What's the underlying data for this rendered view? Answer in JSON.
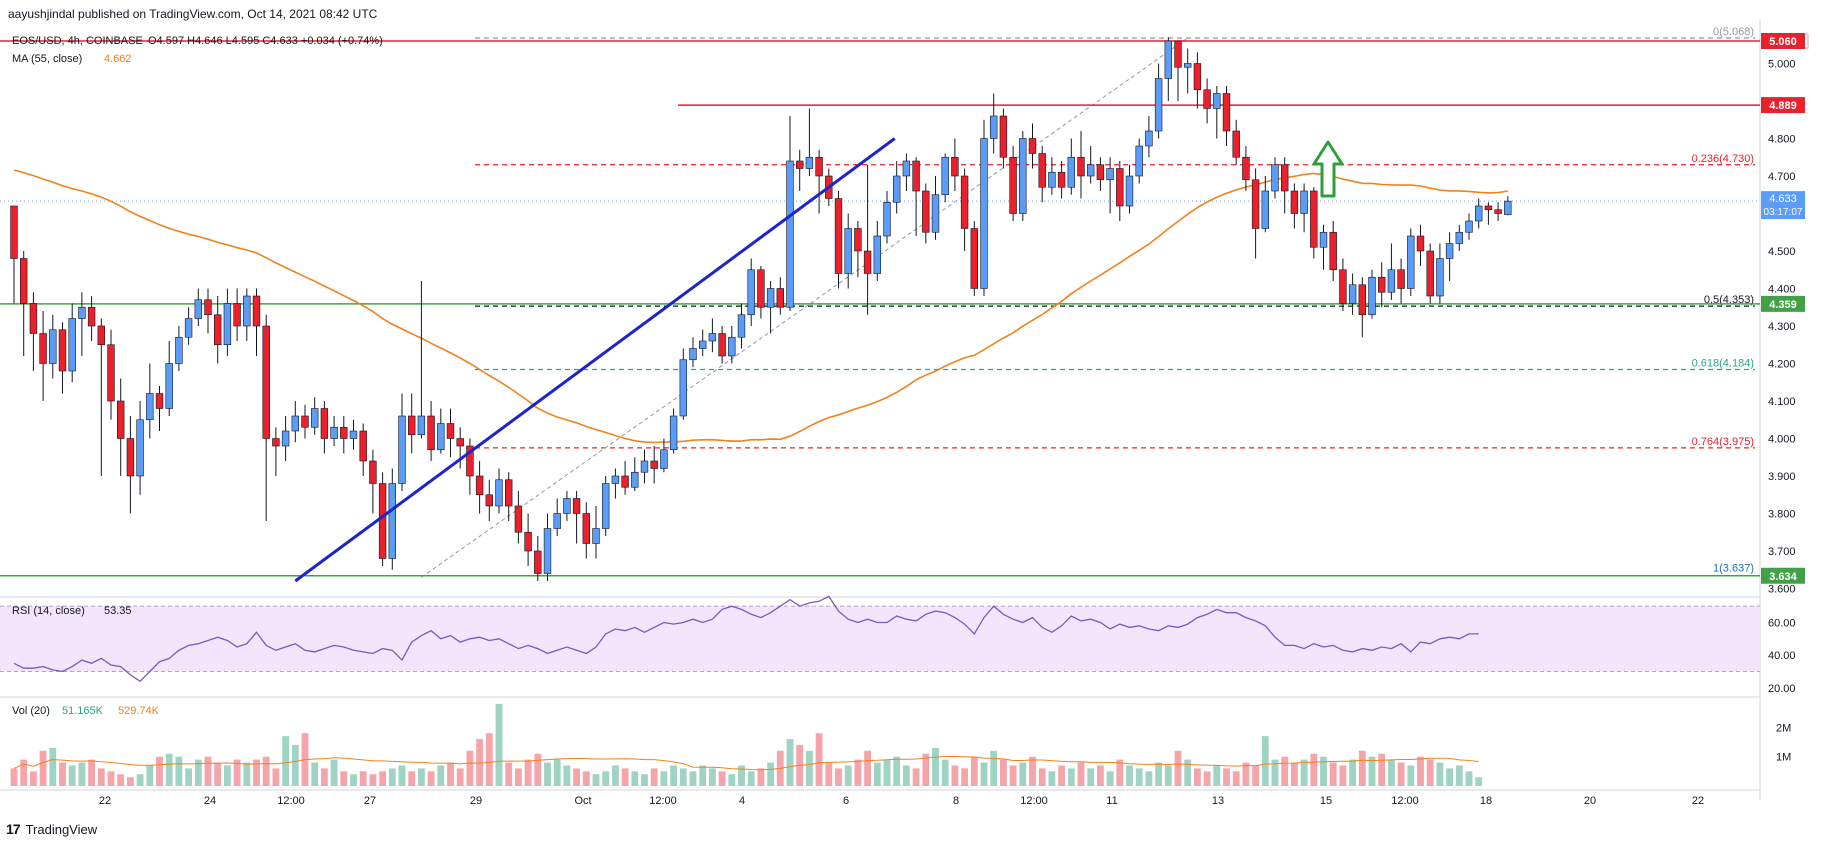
{
  "publisher": "aayushjindal published on TradingView.com, Oct 14, 2021 08:42 UTC",
  "footer": {
    "brand": "TradingView"
  },
  "colors": {
    "up": "#5b9cf6",
    "down": "#e8212c",
    "ma": "#f0821d",
    "trend": "#1d24c9",
    "support": "#43a047",
    "resistance": "#e8212c",
    "rsi": "#7e57c2",
    "vol_up": "#9fd3c3",
    "vol_down": "#f5a4aa",
    "arrow": "#2e9e3a"
  },
  "legend": {
    "symbol": "EOS/USD, 4h, COINBASE",
    "ohlc": "O4.597  H4.646  L4.595  C4.633  +0.034 (+0.74%)",
    "ma_label": "MA (55, close)",
    "ma_value": "4.662",
    "rsi_label": "RSI (14, close)",
    "rsi_value": "53.35",
    "vol_label": "Vol (20)",
    "vol_value1": "51.165K",
    "vol_value2": "529.74K"
  },
  "chart_data": {
    "type": "candlestick",
    "currency_label": "USD",
    "price_axis_ticks": [
      "5",
      "5.000",
      "4.900",
      "4.800",
      "4.700",
      "4.600",
      "4.500",
      "4.400",
      "4.300",
      "4.200",
      "4.100",
      "4.000",
      "3.900",
      "3.800",
      "3.700",
      "3.600"
    ],
    "ylim": [
      3.58,
      5.1
    ],
    "x_ticks": [
      "22",
      "24",
      "12:00",
      "27",
      "29",
      "Oct",
      "12:00",
      "4",
      "6",
      "8",
      "12:00",
      "11",
      "13",
      "15",
      "12:00",
      "18",
      "20",
      "22"
    ],
    "last_price": {
      "value": "4.633",
      "countdown": "03:17:07"
    },
    "horizontal_lines": [
      {
        "value": 5.06,
        "label": "5.060",
        "color": "resistance"
      },
      {
        "value": 4.889,
        "label": "4.889",
        "color": "resistance"
      },
      {
        "value": 4.359,
        "label": "4.359",
        "color": "support"
      },
      {
        "value": 3.634,
        "label": "3.634",
        "color": "support"
      }
    ],
    "fibonacci": [
      {
        "level": "0",
        "price": 5.068,
        "label": "0(5.068)"
      },
      {
        "level": "0.236",
        "price": 4.73,
        "label": "0.236(4.730)"
      },
      {
        "level": "0.5",
        "price": 4.353,
        "label": "0.5(4.353)"
      },
      {
        "level": "0.618",
        "price": 4.184,
        "label": "0.618(4.184)"
      },
      {
        "level": "0.764",
        "price": 3.975,
        "label": "0.764(3.975)"
      },
      {
        "level": "1",
        "price": 3.637,
        "label": "1(3.637)"
      }
    ],
    "trendline": {
      "from": [
        29,
        3.62
      ],
      "to": [
        90.8,
        4.8
      ]
    },
    "candles": [
      [
        4.62,
        4.48,
        4.62,
        4.36
      ],
      [
        4.48,
        4.36,
        4.5,
        4.22
      ],
      [
        4.36,
        4.28,
        4.39,
        4.18
      ],
      [
        4.28,
        4.2,
        4.34,
        4.1
      ],
      [
        4.2,
        4.29,
        4.33,
        4.16
      ],
      [
        4.29,
        4.18,
        4.31,
        4.12
      ],
      [
        4.18,
        4.32,
        4.36,
        4.15
      ],
      [
        4.32,
        4.35,
        4.39,
        4.22
      ],
      [
        4.35,
        4.3,
        4.38,
        4.26
      ],
      [
        4.3,
        4.25,
        4.32,
        3.9
      ],
      [
        4.25,
        4.1,
        4.29,
        4.05
      ],
      [
        4.1,
        4.0,
        4.16,
        3.9
      ],
      [
        4.0,
        3.9,
        4.06,
        3.8
      ],
      [
        3.9,
        4.05,
        4.1,
        3.85
      ],
      [
        4.05,
        4.12,
        4.2,
        4.0
      ],
      [
        4.12,
        4.08,
        4.14,
        4.02
      ],
      [
        4.08,
        4.2,
        4.26,
        4.06
      ],
      [
        4.2,
        4.27,
        4.3,
        4.18
      ],
      [
        4.27,
        4.32,
        4.35,
        4.25
      ],
      [
        4.32,
        4.37,
        4.4,
        4.3
      ],
      [
        4.37,
        4.33,
        4.4,
        4.28
      ],
      [
        4.33,
        4.25,
        4.38,
        4.2
      ],
      [
        4.25,
        4.36,
        4.4,
        4.22
      ],
      [
        4.36,
        4.3,
        4.4,
        4.26
      ],
      [
        4.3,
        4.38,
        4.4,
        4.26
      ],
      [
        4.38,
        4.3,
        4.4,
        4.22
      ],
      [
        4.3,
        4.0,
        4.33,
        3.78
      ],
      [
        4.0,
        3.98,
        4.03,
        3.9
      ],
      [
        3.98,
        4.02,
        4.06,
        3.94
      ],
      [
        4.02,
        4.06,
        4.1,
        3.99
      ],
      [
        4.06,
        4.03,
        4.09,
        4.0
      ],
      [
        4.03,
        4.08,
        4.11,
        4.01
      ],
      [
        4.08,
        4.0,
        4.1,
        3.96
      ],
      [
        4.0,
        4.03,
        4.06,
        3.98
      ],
      [
        4.03,
        4.0,
        4.06,
        3.96
      ],
      [
        4.0,
        4.02,
        4.05,
        3.97
      ],
      [
        4.02,
        3.94,
        4.04,
        3.9
      ],
      [
        3.94,
        3.88,
        3.97,
        3.8
      ],
      [
        3.88,
        3.68,
        3.91,
        3.66
      ],
      [
        3.68,
        3.88,
        3.92,
        3.65
      ],
      [
        3.88,
        4.06,
        4.12,
        3.86
      ],
      [
        4.06,
        4.01,
        4.12,
        3.96
      ],
      [
        4.01,
        4.06,
        4.42,
        4.0
      ],
      [
        4.06,
        3.97,
        4.1,
        3.94
      ],
      [
        3.97,
        4.04,
        4.08,
        3.96
      ],
      [
        4.04,
        4.0,
        4.08,
        3.95
      ],
      [
        4.0,
        3.98,
        4.03,
        3.92
      ],
      [
        3.98,
        3.9,
        4.0,
        3.85
      ],
      [
        3.9,
        3.85,
        3.94,
        3.8
      ],
      [
        3.85,
        3.82,
        3.89,
        3.78
      ],
      [
        3.82,
        3.89,
        3.92,
        3.8
      ],
      [
        3.89,
        3.82,
        3.91,
        3.78
      ],
      [
        3.82,
        3.75,
        3.86,
        3.72
      ],
      [
        3.75,
        3.7,
        3.8,
        3.66
      ],
      [
        3.7,
        3.64,
        3.74,
        3.62
      ],
      [
        3.64,
        3.76,
        3.8,
        3.62
      ],
      [
        3.76,
        3.8,
        3.84,
        3.74
      ],
      [
        3.8,
        3.84,
        3.86,
        3.78
      ],
      [
        3.84,
        3.8,
        3.86,
        3.72
      ],
      [
        3.8,
        3.72,
        3.83,
        3.68
      ],
      [
        3.72,
        3.76,
        3.82,
        3.68
      ],
      [
        3.76,
        3.88,
        3.9,
        3.74
      ],
      [
        3.88,
        3.9,
        3.92,
        3.84
      ],
      [
        3.9,
        3.87,
        3.94,
        3.85
      ],
      [
        3.87,
        3.91,
        3.95,
        3.86
      ],
      [
        3.91,
        3.94,
        3.97,
        3.88
      ],
      [
        3.94,
        3.92,
        3.98,
        3.88
      ],
      [
        3.92,
        3.97,
        4.0,
        3.91
      ],
      [
        3.97,
        4.06,
        4.08,
        3.96
      ],
      [
        4.06,
        4.21,
        4.24,
        4.05
      ],
      [
        4.21,
        4.24,
        4.27,
        4.19
      ],
      [
        4.24,
        4.26,
        4.29,
        4.22
      ],
      [
        4.26,
        4.28,
        4.32,
        4.23
      ],
      [
        4.28,
        4.22,
        4.3,
        4.2
      ],
      [
        4.22,
        4.27,
        4.3,
        4.2
      ],
      [
        4.27,
        4.33,
        4.36,
        4.24
      ],
      [
        4.33,
        4.45,
        4.48,
        4.3
      ],
      [
        4.45,
        4.35,
        4.46,
        4.32
      ],
      [
        4.35,
        4.4,
        4.42,
        4.28
      ],
      [
        4.4,
        4.35,
        4.43,
        4.33
      ],
      [
        4.35,
        4.74,
        4.86,
        4.34
      ],
      [
        4.74,
        4.72,
        4.77,
        4.66
      ],
      [
        4.72,
        4.75,
        4.88,
        4.7
      ],
      [
        4.75,
        4.7,
        4.77,
        4.6
      ],
      [
        4.7,
        4.64,
        4.72,
        4.62
      ],
      [
        4.64,
        4.44,
        4.66,
        4.4
      ],
      [
        4.44,
        4.56,
        4.6,
        4.4
      ],
      [
        4.56,
        4.5,
        4.58,
        4.43
      ],
      [
        4.5,
        4.44,
        4.73,
        4.33
      ],
      [
        4.44,
        4.54,
        4.58,
        4.42
      ],
      [
        4.54,
        4.63,
        4.66,
        4.52
      ],
      [
        4.63,
        4.7,
        4.74,
        4.6
      ],
      [
        4.7,
        4.74,
        4.76,
        4.66
      ],
      [
        4.74,
        4.66,
        4.75,
        4.54
      ],
      [
        4.66,
        4.55,
        4.68,
        4.52
      ],
      [
        4.55,
        4.65,
        4.7,
        4.53
      ],
      [
        4.65,
        4.75,
        4.76,
        4.63
      ],
      [
        4.75,
        4.7,
        4.8,
        4.66
      ],
      [
        4.7,
        4.56,
        4.72,
        4.5
      ],
      [
        4.56,
        4.4,
        4.58,
        4.38
      ],
      [
        4.4,
        4.8,
        4.85,
        4.38
      ],
      [
        4.8,
        4.86,
        4.92,
        4.76
      ],
      [
        4.86,
        4.75,
        4.88,
        4.72
      ],
      [
        4.75,
        4.6,
        4.78,
        4.58
      ],
      [
        4.6,
        4.8,
        4.82,
        4.58
      ],
      [
        4.8,
        4.76,
        4.84,
        4.72
      ],
      [
        4.76,
        4.67,
        4.78,
        4.63
      ],
      [
        4.67,
        4.71,
        4.75,
        4.65
      ],
      [
        4.71,
        4.67,
        4.74,
        4.64
      ],
      [
        4.67,
        4.75,
        4.8,
        4.65
      ],
      [
        4.75,
        4.7,
        4.82,
        4.64
      ],
      [
        4.7,
        4.73,
        4.78,
        4.68
      ],
      [
        4.73,
        4.69,
        4.75,
        4.66
      ],
      [
        4.69,
        4.72,
        4.75,
        4.6
      ],
      [
        4.72,
        4.62,
        4.74,
        4.58
      ],
      [
        4.62,
        4.7,
        4.73,
        4.6
      ],
      [
        4.7,
        4.78,
        4.8,
        4.68
      ],
      [
        4.78,
        4.82,
        4.86,
        4.75
      ],
      [
        4.82,
        4.96,
        5.0,
        4.8
      ],
      [
        4.96,
        5.06,
        5.07,
        4.9
      ],
      [
        5.06,
        4.99,
        5.06,
        4.9
      ],
      [
        4.99,
        5.0,
        5.04,
        4.92
      ],
      [
        5.0,
        4.93,
        5.03,
        4.88
      ],
      [
        4.93,
        4.88,
        4.96,
        4.84
      ],
      [
        4.88,
        4.92,
        4.94,
        4.8
      ],
      [
        4.92,
        4.82,
        4.94,
        4.78
      ],
      [
        4.82,
        4.75,
        4.85,
        4.73
      ],
      [
        4.75,
        4.69,
        4.78,
        4.66
      ],
      [
        4.69,
        4.56,
        4.72,
        4.48
      ],
      [
        4.56,
        4.66,
        4.7,
        4.55
      ],
      [
        4.66,
        4.73,
        4.75,
        4.64
      ],
      [
        4.73,
        4.66,
        4.75,
        4.6
      ],
      [
        4.66,
        4.6,
        4.68,
        4.56
      ],
      [
        4.6,
        4.66,
        4.68,
        4.55
      ],
      [
        4.66,
        4.51,
        4.67,
        4.48
      ],
      [
        4.51,
        4.55,
        4.57,
        4.45
      ],
      [
        4.55,
        4.45,
        4.58,
        4.42
      ],
      [
        4.45,
        4.36,
        4.48,
        4.34
      ],
      [
        4.36,
        4.41,
        4.44,
        4.33
      ],
      [
        4.41,
        4.33,
        4.43,
        4.27
      ],
      [
        4.33,
        4.43,
        4.45,
        4.32
      ],
      [
        4.43,
        4.39,
        4.47,
        4.35
      ],
      [
        4.39,
        4.45,
        4.52,
        4.37
      ],
      [
        4.45,
        4.4,
        4.48,
        4.36
      ],
      [
        4.4,
        4.54,
        4.56,
        4.38
      ],
      [
        4.54,
        4.5,
        4.57,
        4.46
      ],
      [
        4.5,
        4.38,
        4.52,
        4.36
      ],
      [
        4.38,
        4.48,
        4.52,
        4.36
      ],
      [
        4.48,
        4.52,
        4.55,
        4.42
      ],
      [
        4.52,
        4.55,
        4.57,
        4.5
      ],
      [
        4.55,
        4.58,
        4.6,
        4.53
      ],
      [
        4.58,
        4.62,
        4.64,
        4.56
      ],
      [
        4.62,
        4.61,
        4.63,
        4.57
      ],
      [
        4.61,
        4.6,
        4.63,
        4.58
      ],
      [
        4.597,
        4.633,
        4.646,
        4.595
      ]
    ],
    "rsi": {
      "ticks": [
        "60.00",
        "40.00",
        "20.00"
      ],
      "upper": 70,
      "lower": 30,
      "ylim": [
        15,
        75
      ],
      "values": [
        35,
        32,
        32,
        33,
        31,
        30,
        33,
        37,
        35,
        38,
        34,
        33,
        28,
        24,
        30,
        36,
        38,
        43,
        46,
        47,
        49,
        51,
        49,
        45,
        47,
        54,
        46,
        43,
        45,
        47,
        43,
        42,
        44,
        46,
        45,
        43,
        42,
        41,
        44,
        43,
        37,
        48,
        52,
        55,
        50,
        52,
        48,
        50,
        51,
        49,
        50,
        47,
        44,
        46,
        44,
        41,
        43,
        45,
        43,
        41,
        45,
        53,
        56,
        55,
        57,
        54,
        57,
        60,
        59,
        60,
        62,
        60,
        62,
        68,
        70,
        68,
        65,
        63,
        66,
        70,
        74,
        70,
        72,
        73,
        76,
        67,
        62,
        60,
        62,
        60,
        60,
        64,
        62,
        61,
        65,
        67,
        66,
        63,
        59,
        53,
        63,
        70,
        65,
        62,
        60,
        63,
        57,
        54,
        58,
        64,
        61,
        62,
        60,
        56,
        59,
        57,
        58,
        56,
        55,
        58,
        57,
        59,
        63,
        65,
        68,
        66,
        66,
        63,
        61,
        58,
        51,
        46,
        46,
        44,
        47,
        45,
        46,
        43,
        42,
        44,
        43,
        45,
        44,
        47,
        42,
        48,
        47,
        50,
        51,
        50,
        53,
        53
      ]
    },
    "volume": {
      "ticks": [
        "2M",
        "1M"
      ],
      "ylim": [
        0,
        3000000
      ],
      "values": [
        600,
        900,
        500,
        1200,
        1300,
        800,
        700,
        800,
        900,
        600,
        500,
        400,
        300,
        400,
        700,
        1000,
        1100,
        1000,
        600,
        900,
        1000,
        800,
        700,
        900,
        800,
        900,
        1000,
        600,
        1700,
        1400,
        1800,
        800,
        600,
        900,
        500,
        400,
        500,
        400,
        500,
        600,
        700,
        500,
        600,
        500,
        700,
        800,
        600,
        1200,
        1600,
        1800,
        2800,
        800,
        600,
        900,
        1100,
        800,
        900,
        700,
        600,
        500,
        400,
        500,
        700,
        600,
        500,
        400,
        600,
        500,
        700,
        600,
        500,
        700,
        600,
        500,
        400,
        700,
        500,
        600,
        800,
        1200,
        1600,
        1400,
        1200,
        1800,
        800,
        600,
        700,
        900,
        1200,
        800,
        900,
        1000,
        700,
        600,
        1100,
        1300,
        900,
        700,
        600,
        1000,
        800,
        1200,
        900,
        700,
        800,
        1000,
        600,
        500,
        700,
        600,
        800,
        600,
        700,
        500,
        900,
        700,
        600,
        500,
        800,
        700,
        1200,
        900,
        600,
        500,
        700,
        600,
        500,
        800,
        700,
        1700,
        900,
        1000,
        800,
        900,
        1100,
        1000,
        800,
        700,
        900,
        1200,
        1000,
        1100,
        900,
        800,
        700,
        1000,
        900,
        800,
        600,
        700,
        500,
        300
      ]
    }
  }
}
